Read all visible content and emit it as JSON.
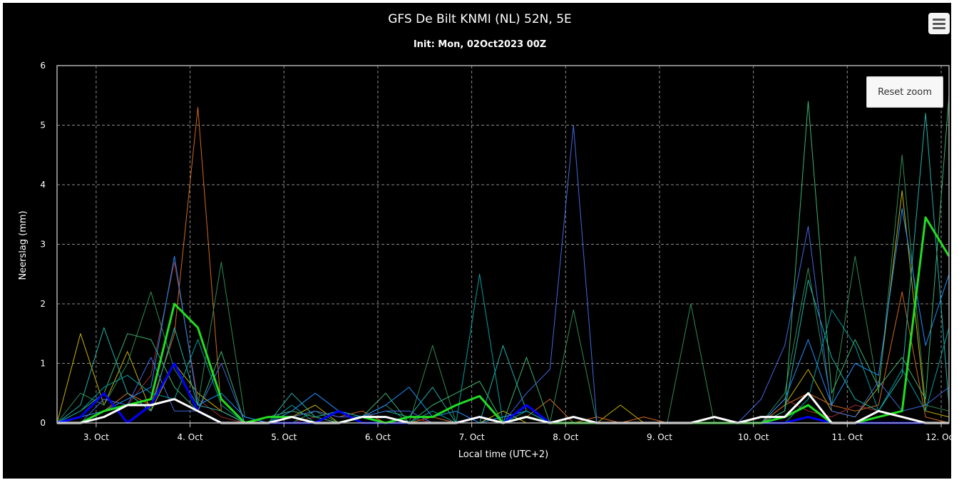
{
  "chart_data": {
    "type": "line",
    "title": "GFS De Bilt KNMI (NL) 52N, 5E",
    "subtitle": "Init: Mon, 02Oct2023 00Z",
    "xlabel": "Local time (UTC+2)",
    "ylabel": "Neerslag (mm)",
    "ylim": [
      0,
      6
    ],
    "xlim": [
      "2023-10-02 14:00",
      "2023-10-12 02:00"
    ],
    "yticks": [
      "0",
      "1",
      "2",
      "3",
      "4",
      "5",
      "6"
    ],
    "xticks": [
      {
        "x": "2023-10-03 00:00",
        "label": "3. Oct"
      },
      {
        "x": "2023-10-04 00:00",
        "label": "4. Oct"
      },
      {
        "x": "2023-10-05 00:00",
        "label": "5. Oct"
      },
      {
        "x": "2023-10-06 00:00",
        "label": "6. Oct"
      },
      {
        "x": "2023-10-07 00:00",
        "label": "7. Oct"
      },
      {
        "x": "2023-10-08 00:00",
        "label": "8. Oct"
      },
      {
        "x": "2023-10-09 00:00",
        "label": "9. Oct"
      },
      {
        "x": "2023-10-10 00:00",
        "label": "10. Oct"
      },
      {
        "x": "2023-10-11 00:00",
        "label": "11. Oct"
      },
      {
        "x": "2023-10-12 00:00",
        "label": "12. Oct"
      }
    ],
    "grid": true,
    "background": "#000000",
    "x": [
      "2023-10-02 14:00",
      "2023-10-02 20:00",
      "2023-10-03 02:00",
      "2023-10-03 08:00",
      "2023-10-03 14:00",
      "2023-10-03 20:00",
      "2023-10-04 02:00",
      "2023-10-04 08:00",
      "2023-10-04 14:00",
      "2023-10-04 20:00",
      "2023-10-05 02:00",
      "2023-10-05 08:00",
      "2023-10-05 14:00",
      "2023-10-05 20:00",
      "2023-10-06 02:00",
      "2023-10-06 08:00",
      "2023-10-06 14:00",
      "2023-10-06 20:00",
      "2023-10-07 02:00",
      "2023-10-07 08:00",
      "2023-10-07 14:00",
      "2023-10-07 20:00",
      "2023-10-08 02:00",
      "2023-10-08 08:00",
      "2023-10-08 14:00",
      "2023-10-08 20:00",
      "2023-10-09 02:00",
      "2023-10-09 08:00",
      "2023-10-09 14:00",
      "2023-10-09 20:00",
      "2023-10-10 02:00",
      "2023-10-10 08:00",
      "2023-10-10 14:00",
      "2023-10-10 20:00",
      "2023-10-11 02:00",
      "2023-10-11 08:00",
      "2023-10-11 14:00",
      "2023-10-11 20:00",
      "2023-10-12 02:00"
    ],
    "series": [
      {
        "color": "#c8b400",
        "width": 1,
        "values": [
          0,
          1.5,
          0.3,
          1.2,
          0.2,
          1.0,
          0.5,
          0.2,
          0,
          0,
          0.1,
          0.3,
          0,
          0.1,
          0.1,
          0,
          0,
          0,
          0,
          0.2,
          0,
          0,
          0,
          0,
          0.3,
          0,
          0,
          0,
          0,
          0,
          0,
          0.3,
          0.9,
          0.2,
          0.1,
          0.6,
          3.9,
          0.2,
          0.1
        ]
      },
      {
        "color": "#d2691e",
        "width": 1,
        "values": [
          0,
          0.1,
          0.2,
          0.5,
          0.3,
          1.5,
          5.3,
          0.2,
          0,
          0,
          0.1,
          0.2,
          0.1,
          0.2,
          0,
          0,
          0.1,
          0,
          0,
          0,
          0.1,
          0.4,
          0,
          0.1,
          0,
          0.1,
          0,
          0,
          0,
          0,
          0,
          0.3,
          0.5,
          0.3,
          0.2,
          0.3,
          2.2,
          0.1,
          0
        ]
      },
      {
        "color": "#a52a2a",
        "width": 1,
        "values": [
          0,
          0,
          0.1,
          0.3,
          0.8,
          2.7,
          0.4,
          0.1,
          0,
          0,
          0,
          0.1,
          0,
          0,
          0,
          0.1,
          0,
          0,
          0,
          0,
          0,
          0,
          0,
          0,
          0,
          0,
          0,
          0,
          0,
          0,
          0,
          0.4,
          0.2,
          0.1,
          0.3,
          0.2,
          0.1,
          0,
          0
        ]
      },
      {
        "color": "#2e8b57",
        "width": 1,
        "values": [
          0,
          0.5,
          0.3,
          1.0,
          2.2,
          0.9,
          0.3,
          2.7,
          0.1,
          0,
          0,
          0.2,
          0,
          0.1,
          0.3,
          0,
          1.3,
          0,
          0,
          0.1,
          0.2,
          0,
          1.9,
          0,
          0,
          0,
          0,
          2.0,
          0,
          0,
          0,
          0.5,
          2.6,
          0.3,
          2.8,
          0.5,
          4.5,
          0.3,
          0.2
        ]
      },
      {
        "color": "#1e90ff",
        "width": 1,
        "values": [
          0,
          0.1,
          0.2,
          0.4,
          0.6,
          2.8,
          0.3,
          0.5,
          0.1,
          0,
          0.2,
          0.5,
          0.2,
          0.1,
          0.3,
          0.6,
          0.1,
          0.2,
          0,
          0.1,
          0.2,
          0,
          0,
          0,
          0,
          0,
          0,
          0,
          0,
          0,
          0,
          0.4,
          1.4,
          0.3,
          1.0,
          0.8,
          3.6,
          1.3,
          2.5
        ]
      },
      {
        "color": "#20b2aa",
        "width": 1,
        "values": [
          0,
          0.3,
          1.6,
          0.5,
          0.2,
          1.6,
          0.3,
          0.2,
          0,
          0,
          0.5,
          0.1,
          0.2,
          0.1,
          0.2,
          0.1,
          0.6,
          0,
          0,
          1.3,
          0.2,
          0,
          0,
          0,
          0,
          0,
          0,
          0,
          0,
          0,
          0,
          0.2,
          2.4,
          1.1,
          0.4,
          0.2,
          0.8,
          5.2,
          0.3
        ]
      },
      {
        "color": "#3cb371",
        "width": 1,
        "values": [
          0,
          0.2,
          0.5,
          1.5,
          1.4,
          0.6,
          0.2,
          1.2,
          0,
          0.1,
          0.2,
          0.1,
          0,
          0.1,
          0.5,
          0,
          0.3,
          0.5,
          0.7,
          0,
          1.1,
          0,
          0,
          0,
          0,
          0,
          0,
          0,
          0,
          0,
          0,
          0.2,
          5.4,
          0.5,
          1.4,
          0.6,
          1.1,
          0.4,
          5.5
        ]
      },
      {
        "color": "#4169e1",
        "width": 1,
        "values": [
          0,
          0,
          0.4,
          0.3,
          1.1,
          0.2,
          0.2,
          1.0,
          0,
          0,
          0.1,
          0.2,
          0.1,
          0.1,
          0.2,
          0.2,
          0,
          0,
          0,
          0,
          0.5,
          0.9,
          5.0,
          0,
          0,
          0,
          0,
          0,
          0,
          0,
          0.4,
          1.3,
          3.3,
          0.2,
          0.1,
          0.7,
          0.2,
          0.3,
          0.6
        ]
      },
      {
        "color": "#00a0a0",
        "width": 1,
        "values": [
          0,
          0.2,
          0.6,
          0.8,
          0.5,
          0.4,
          1.4,
          0.3,
          0,
          0,
          0.3,
          0,
          0,
          0.1,
          0.1,
          0,
          0.2,
          0,
          2.5,
          0,
          0.2,
          0,
          0,
          0,
          0,
          0,
          0,
          0,
          0,
          0,
          0,
          0,
          0.4,
          1.9,
          1.3,
          0.2,
          0.9,
          0.2,
          1.6
        ]
      },
      {
        "color": "#0000ff",
        "width": 3,
        "values": [
          0,
          0.1,
          0.5,
          0,
          0.3,
          1.0,
          0.2,
          0,
          0,
          0,
          0,
          0,
          0.2,
          0,
          0,
          0,
          0,
          0,
          0.1,
          0,
          0.3,
          0,
          0,
          0,
          0,
          0,
          0,
          0,
          0,
          0,
          0,
          0,
          0.1,
          0,
          0,
          0,
          0,
          0,
          0
        ]
      },
      {
        "color": "#22dd22",
        "width": 3,
        "values": [
          0,
          0,
          0.2,
          0.3,
          0.4,
          2.0,
          1.6,
          0.4,
          0,
          0.1,
          0.1,
          0,
          0,
          0.1,
          0,
          0.1,
          0.1,
          0.3,
          0.45,
          0,
          0.1,
          0,
          0,
          0,
          0,
          0,
          0,
          0,
          0,
          0,
          0,
          0.1,
          0.3,
          0,
          0,
          0.1,
          0.2,
          3.45,
          2.8
        ]
      },
      {
        "color": "#ffffff",
        "width": 3,
        "values": [
          0,
          0,
          0.1,
          0.3,
          0.3,
          0.4,
          0.2,
          0,
          0,
          0,
          0.1,
          0,
          0,
          0.1,
          0.1,
          0,
          0,
          0,
          0.1,
          0,
          0.1,
          0,
          0.1,
          0,
          0,
          0,
          0,
          0,
          0.1,
          0,
          0.1,
          0.1,
          0.5,
          0,
          0,
          0.2,
          0.1,
          0,
          0
        ]
      }
    ]
  },
  "controls": {
    "reset_zoom_label": "Reset zoom",
    "menu_icon": "hamburger-menu-icon"
  }
}
